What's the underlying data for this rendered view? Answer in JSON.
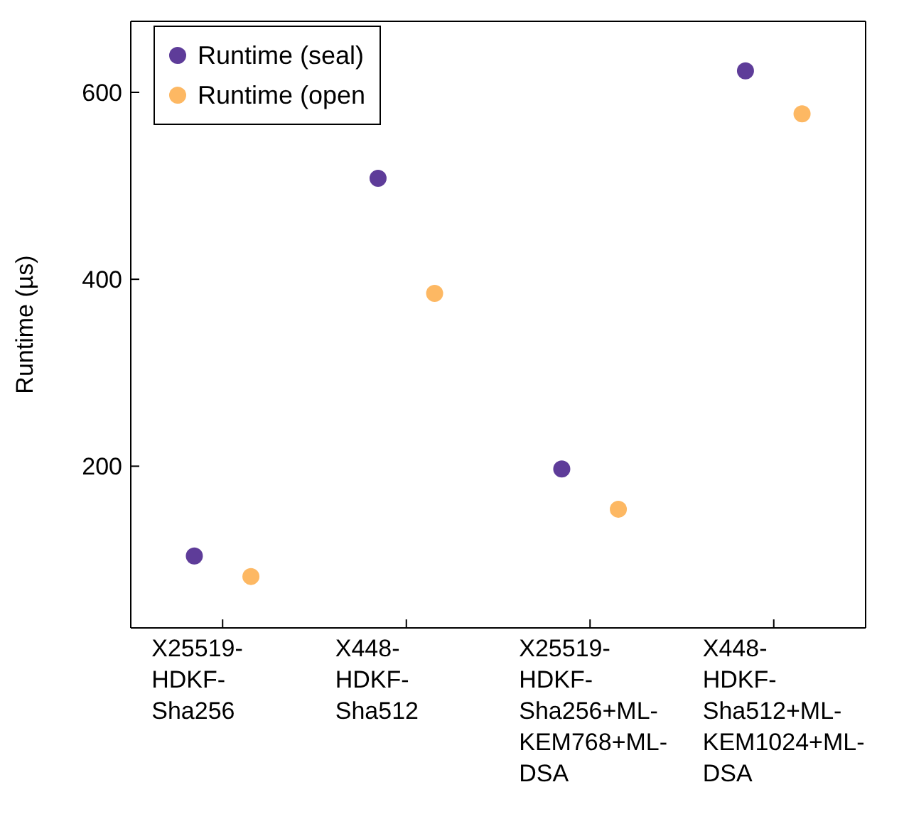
{
  "chart_data": {
    "type": "scatter",
    "ylabel": "Runtime (µs)",
    "categories": [
      "X25519-HDKF-Sha256",
      "X448-HDKF-Sha512",
      "X25519-HDKF-Sha256+ML-KEM768+ML-DSA",
      "X448-HDKF-Sha512+ML-KEM1024+ML-DSA"
    ],
    "series": [
      {
        "name": "Runtime (seal)",
        "color": "#5e3c99",
        "values": [
          104,
          508,
          197,
          623
        ]
      },
      {
        "name": "Runtime (open",
        "color": "#fdb863",
        "values": [
          82,
          385,
          154,
          577
        ]
      }
    ],
    "ylim": [
      27,
      676
    ],
    "yticks": [
      200,
      400,
      600
    ],
    "legend": "top left",
    "marker": "circle"
  }
}
